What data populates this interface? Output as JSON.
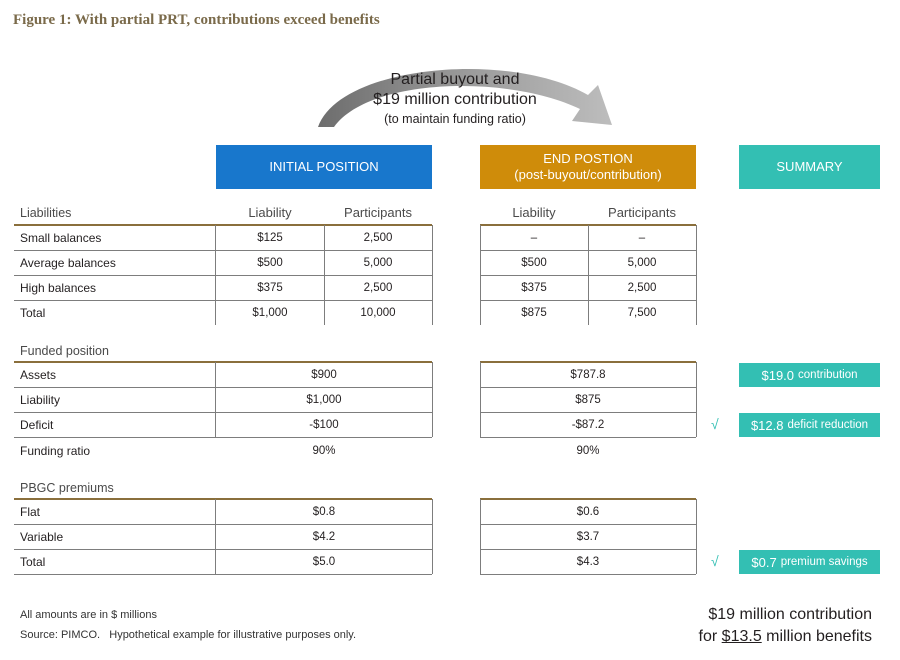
{
  "figure_title": "Figure 1: With partial PRT, contributions exceed benefits",
  "arrow_label": {
    "line1": "Partial buyout and",
    "line2": "$19 million contribution",
    "line3": "(to maintain funding ratio)"
  },
  "headers": {
    "initial": "INITIAL POSITION",
    "end_line1": "END POSTION",
    "end_line2": "(post-buyout/contribution)",
    "summary": "SUMMARY"
  },
  "liabilities": {
    "section": "Liabilities",
    "col_liability": "Liability",
    "col_participants": "Participants",
    "rows": [
      {
        "label": "Small balances",
        "init_liab": "$125",
        "init_part": "2,500",
        "end_liab": "–",
        "end_part": "–"
      },
      {
        "label": "Average balances",
        "init_liab": "$500",
        "init_part": "5,000",
        "end_liab": "$500",
        "end_part": "5,000"
      },
      {
        "label": "High balances",
        "init_liab": "$375",
        "init_part": "2,500",
        "end_liab": "$375",
        "end_part": "2,500"
      },
      {
        "label": "Total",
        "init_liab": "$1,000",
        "init_part": "10,000",
        "end_liab": "$875",
        "end_part": "7,500"
      }
    ]
  },
  "funded": {
    "section": "Funded position",
    "rows": [
      {
        "label": "Assets",
        "init": "$900",
        "end": "$787.8"
      },
      {
        "label": "Liability",
        "init": "$1,000",
        "end": "$875"
      },
      {
        "label": "Deficit",
        "init": "-$100",
        "end": "-$87.2"
      },
      {
        "label": "Funding ratio",
        "init": "90%",
        "end": "90%"
      }
    ]
  },
  "pbgc": {
    "section": "PBGC premiums",
    "rows": [
      {
        "label": "Flat",
        "init": "$0.8",
        "end": "$0.6"
      },
      {
        "label": "Variable",
        "init": "$4.2",
        "end": "$3.7"
      },
      {
        "label": "Total",
        "init": "$5.0",
        "end": "$4.3"
      }
    ]
  },
  "summary": {
    "check": "√",
    "contribution": {
      "value": "$19.0",
      "text": "contribution"
    },
    "deficit": {
      "value": "$12.8",
      "text": "deficit reduction"
    },
    "premium": {
      "value": "$0.7",
      "text": "premium savings"
    },
    "footer_line1": "$19 million contribution",
    "footer_line2_pre": "for ",
    "footer_line2_amount": "$13.5",
    "footer_line2_post": " million benefits"
  },
  "footnotes": {
    "amounts": "All amounts are in $ millions",
    "source": "Source: PIMCO.   Hypothetical example for illustrative purposes only."
  },
  "colors": {
    "initial": "#1877cc",
    "end": "#cf8c0a",
    "summary": "#33bfb3",
    "title": "#7a6a4a"
  }
}
